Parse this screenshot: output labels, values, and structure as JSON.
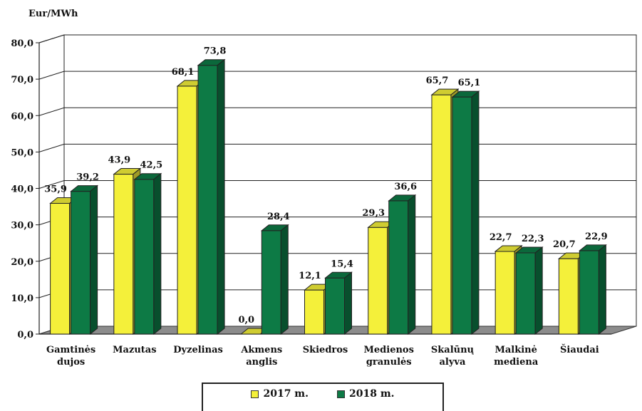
{
  "chart_data": {
    "type": "bar",
    "ylabel": "Eur/MWh",
    "ylim": [
      0,
      80
    ],
    "yticks": [
      "0,0",
      "10,0",
      "20,0",
      "30,0",
      "40,0",
      "50,0",
      "60,0",
      "70,0",
      "80,0"
    ],
    "categories": [
      [
        "Gamtinės",
        "dujos"
      ],
      [
        "Mazutas"
      ],
      [
        "Dyzelinas"
      ],
      [
        "Akmens",
        "anglis"
      ],
      [
        "Skiedros"
      ],
      [
        "Medienos",
        "granulės"
      ],
      [
        "Skalūnų",
        "alyva"
      ],
      [
        "Malkinė",
        "mediena"
      ],
      [
        "Šiaudai"
      ]
    ],
    "series": [
      {
        "name": "2017 m.",
        "color": "#f4f03a",
        "values": [
          35.9,
          43.9,
          68.1,
          0.0,
          12.1,
          29.3,
          65.7,
          22.7,
          20.7
        ],
        "labels": [
          "35,9",
          "43,9",
          "68,1",
          "0,0",
          "12,1",
          "29,3",
          "65,7",
          "22,7",
          "20,7"
        ]
      },
      {
        "name": "2018 m.",
        "color": "#0d7a45",
        "values": [
          39.2,
          42.5,
          73.8,
          28.4,
          15.4,
          36.6,
          65.1,
          22.3,
          22.9
        ],
        "labels": [
          "39,2",
          "42,5",
          "73,8",
          "28,4",
          "15,4",
          "36,6",
          "65,1",
          "22,3",
          "22,9"
        ]
      }
    ],
    "grid": true,
    "legend_position": "bottom"
  },
  "legend": {
    "label_2017": "2017 m.",
    "label_2018": "2018 m."
  }
}
